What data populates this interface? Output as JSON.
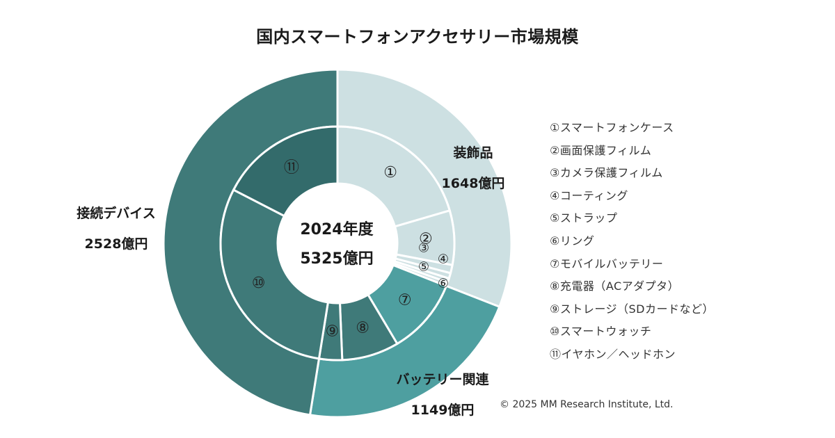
{
  "title": "国内スマートフォンアクセサリー市場規模",
  "center": {
    "line1": "2024年度",
    "line2": "5325億円"
  },
  "legend": [
    "①スマートフォンケース",
    "②画面保護フィルム",
    "③カメラ保護フィルム",
    "④コーティング",
    "⑤ストラップ",
    "⑥リング",
    "⑦モバイルバッテリー",
    "⑧充電器（ACアダプタ）",
    "⑨ストレージ（SDカードなど）",
    "⑩スマートウォッチ",
    "⑪イヤホン／ヘッドホン"
  ],
  "copyright": "© 2025 MM Research Institute, Ltd.",
  "chart_data": {
    "type": "pie",
    "subtype": "nested-donut",
    "title": "国内スマートフォンアクセサリー市場規模",
    "total": {
      "label": "2024年度",
      "value": 5325,
      "unit": "億円"
    },
    "outer_ring": [
      {
        "name": "装飾品",
        "value": 1648,
        "value_label": "1648億円",
        "color": "#cde0e2"
      },
      {
        "name": "バッテリー関連",
        "value": 1149,
        "value_label": "1149億円",
        "color": "#4e9fa0"
      },
      {
        "name": "接続デバイス",
        "value": 2528,
        "value_label": "2528億円",
        "color": "#3f7a79"
      }
    ],
    "inner_ring": [
      {
        "marker": "①",
        "group": 0,
        "value": 1090,
        "color": "#cde0e2"
      },
      {
        "marker": "②",
        "group": 0,
        "value": 400,
        "color": "#cde0e2"
      },
      {
        "marker": "③",
        "group": 0,
        "value": 60,
        "color": "#cde0e2"
      },
      {
        "marker": "④",
        "group": 0,
        "value": 40,
        "color": "#cde0e2"
      },
      {
        "marker": "⑤",
        "group": 0,
        "value": 30,
        "color": "#cde0e2"
      },
      {
        "marker": "⑥",
        "group": 0,
        "value": 28,
        "color": "#cde0e2"
      },
      {
        "marker": "⑦",
        "group": 1,
        "value": 560,
        "color": "#4e9fa0"
      },
      {
        "marker": "⑧",
        "group": 1,
        "value": 420,
        "color": "#3f7a79"
      },
      {
        "marker": "⑨",
        "group": 1,
        "value": 169,
        "color": "#3f7a79"
      },
      {
        "marker": "⑩",
        "group": 2,
        "value": 1600,
        "color": "#3f7a79"
      },
      {
        "marker": "⑪",
        "group": 2,
        "value": 928,
        "color": "#336b6b"
      }
    ],
    "colors": {
      "decor": "#cde0e2",
      "battery": "#4e9fa0",
      "connect": "#3f7a79",
      "earphone": "#336b6b",
      "divider": "#ffffff"
    }
  }
}
